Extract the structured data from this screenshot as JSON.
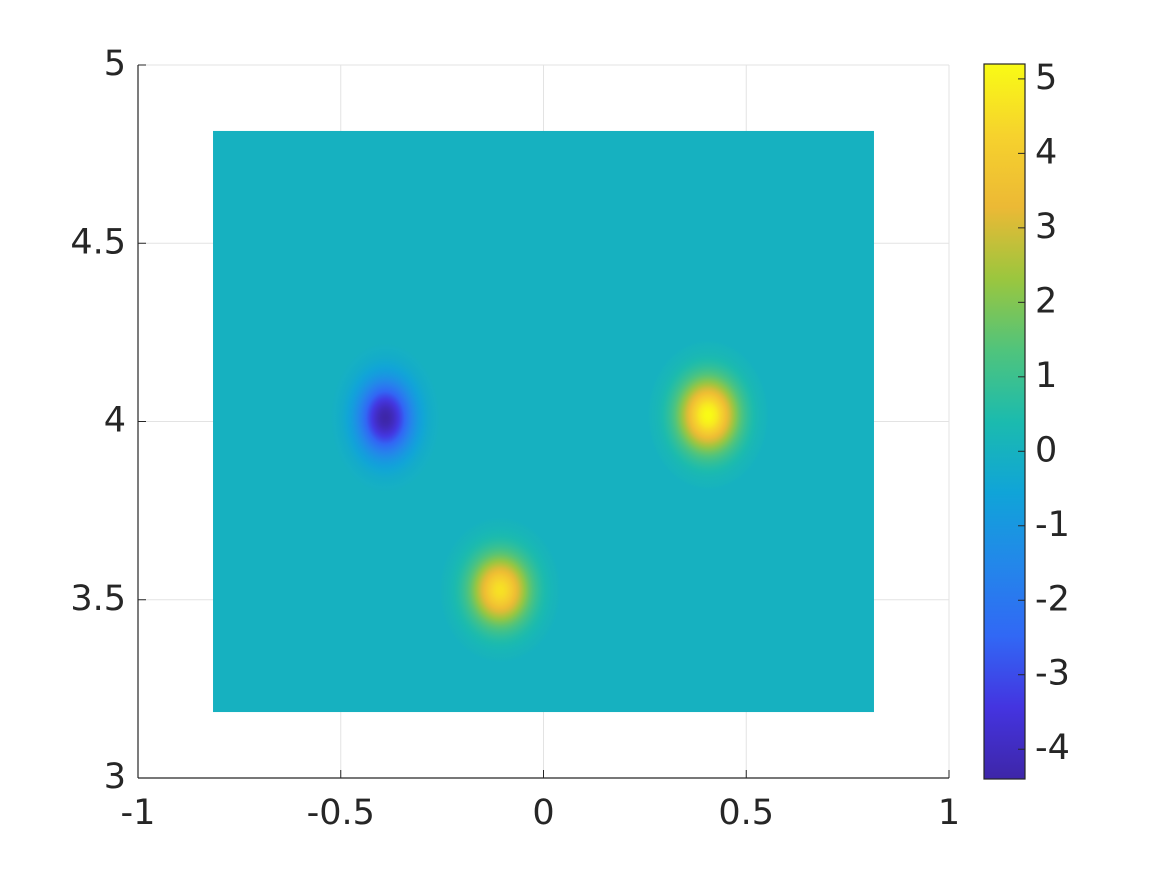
{
  "chart_data": {
    "type": "heatmap",
    "xlim": [
      -1,
      1
    ],
    "xticks": [
      -1,
      -0.5,
      0,
      0.5,
      1
    ],
    "ylim": [
      3,
      5
    ],
    "yticks": [
      3,
      3.5,
      4,
      4.5,
      5
    ],
    "grid": true,
    "field_x": [
      -0.815,
      0.815
    ],
    "field_y": [
      3.185,
      4.815
    ],
    "background": 0,
    "blobs": [
      {
        "x": -0.39,
        "y": 4.01,
        "value": -4.4,
        "sx": 0.045,
        "sy": 0.07
      },
      {
        "x": 0.406,
        "y": 4.018,
        "value": 5.2,
        "sx": 0.05,
        "sy": 0.07
      },
      {
        "x": -0.107,
        "y": 3.527,
        "value": 4.6,
        "sx": 0.05,
        "sy": 0.068
      }
    ],
    "clim": [
      -4.4,
      5.2
    ],
    "cticks": [
      -4,
      -3,
      -2,
      -1,
      0,
      1,
      2,
      3,
      4,
      5
    ],
    "colormap": [
      "#3e26a8",
      "#4434e0",
      "#3168f5",
      "#2387ea",
      "#10a4d8",
      "#1bbbae",
      "#50c47c",
      "#9bc63e",
      "#ecb935",
      "#f6d22d",
      "#f9fb15"
    ]
  }
}
